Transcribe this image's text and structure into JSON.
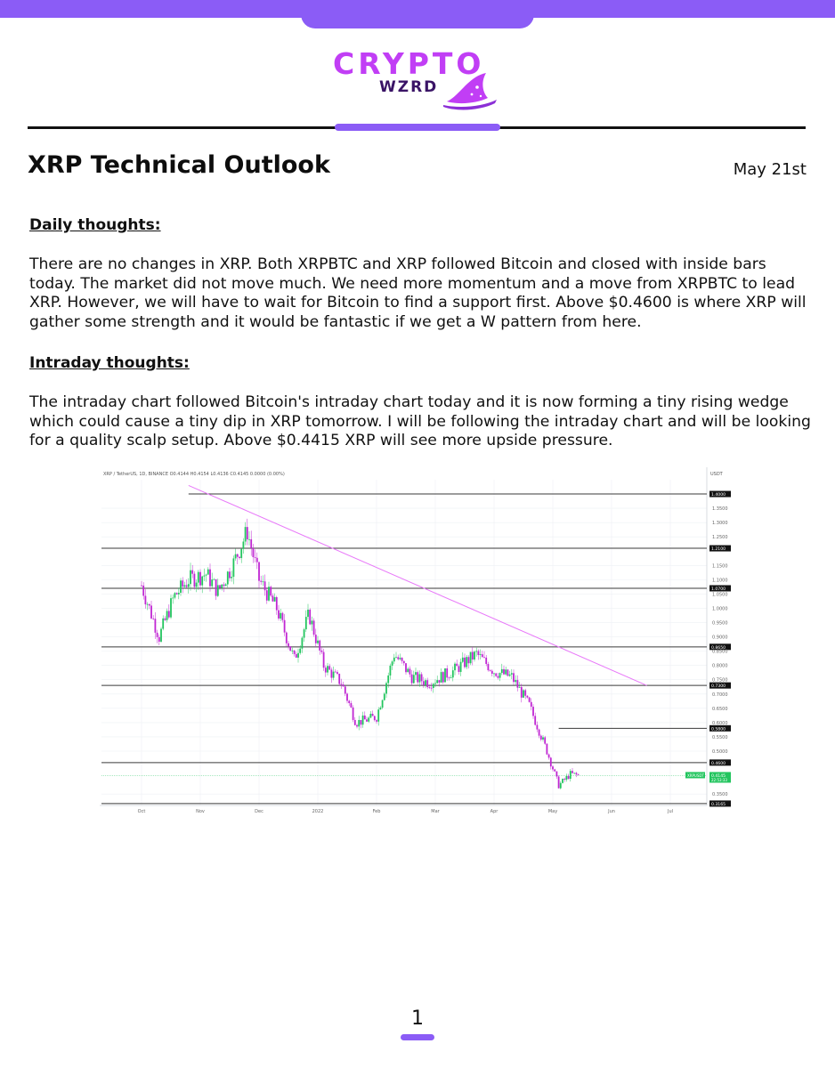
{
  "brand": {
    "logo_word": "CRYPTO",
    "logo_sub": "WZRD",
    "logo_color": "#c13ef5",
    "accent_color": "#8b5cf6"
  },
  "header": {
    "title": "XRP Technical Outlook",
    "date": "May 21st"
  },
  "sections": {
    "daily": {
      "heading": "Daily thoughts:",
      "body": "There are no changes in XRP. Both XRPBTC and XRP followed Bitcoin and closed with inside bars today. The market did not move much. We need more momentum and a move from XRPBTC to lead XRP. However, we will have to wait for Bitcoin to find a support first. Above $0.4600 is where XRP will gather some strength and it would be fantastic if we get a W pattern from here."
    },
    "intraday": {
      "heading": "Intraday thoughts:",
      "body": "The intraday chart followed Bitcoin's intraday chart today and it is now forming a tiny rising wedge which could cause a tiny dip in XRP tomorrow. I will be following the intraday chart and will be looking for a quality scalp setup. Above $0.4415 XRP will see more upside pressure."
    }
  },
  "chart_data": {
    "type": "candlestick",
    "info_line": "XRP / TetherUS, 1D, BINANCE  O0.4144  H0.4154  L0.4136  C0.4145  0.0000 (0.00%)",
    "currency": "USDT",
    "ylim": [
      0.31,
      1.45
    ],
    "y_ticks": [
      1.35,
      1.3,
      1.25,
      1.15,
      1.1,
      1.05,
      1.0,
      0.95,
      0.9,
      0.85,
      0.8,
      0.75,
      0.7,
      0.65,
      0.6,
      0.55,
      0.5,
      0.35
    ],
    "x_ticks": [
      "Oct",
      "Nov",
      "Dec",
      "2022",
      "Feb",
      "Mar",
      "Apr",
      "May",
      "Jun",
      "Jul"
    ],
    "levels": [
      {
        "value": 1.4,
        "label": "1.4000"
      },
      {
        "value": 1.21,
        "label": "1.2100"
      },
      {
        "value": 1.07,
        "label": "1.0700"
      },
      {
        "value": 0.865,
        "label": "0.8650"
      },
      {
        "value": 0.73,
        "label": "0.7300"
      },
      {
        "value": 0.58,
        "label": "0.5800"
      },
      {
        "value": 0.46,
        "label": "0.4600"
      },
      {
        "value": 0.3165,
        "label": "0.3165"
      }
    ],
    "trendline": {
      "from": {
        "month": 0.8,
        "price": 1.43
      },
      "to": {
        "month": 8.6,
        "price": 0.73
      }
    },
    "last_price": {
      "ticker": "XRPUSDT",
      "value": "0.4145",
      "countdown": "22:53:33",
      "numeric": 0.4145
    },
    "candle_path": [
      {
        "m": 0.0,
        "p": 1.08
      },
      {
        "m": 0.3,
        "p": 0.9
      },
      {
        "m": 0.55,
        "p": 1.04
      },
      {
        "m": 0.8,
        "p": 1.1
      },
      {
        "m": 1.1,
        "p": 1.12
      },
      {
        "m": 1.3,
        "p": 1.06
      },
      {
        "m": 1.55,
        "p": 1.15
      },
      {
        "m": 1.8,
        "p": 1.27
      },
      {
        "m": 2.0,
        "p": 1.1
      },
      {
        "m": 2.3,
        "p": 1.0
      },
      {
        "m": 2.6,
        "p": 0.82
      },
      {
        "m": 2.85,
        "p": 0.98
      },
      {
        "m": 3.1,
        "p": 0.8
      },
      {
        "m": 3.4,
        "p": 0.74
      },
      {
        "m": 3.65,
        "p": 0.6
      },
      {
        "m": 4.0,
        "p": 0.62
      },
      {
        "m": 4.3,
        "p": 0.84
      },
      {
        "m": 4.6,
        "p": 0.76
      },
      {
        "m": 4.9,
        "p": 0.74
      },
      {
        "m": 5.3,
        "p": 0.78
      },
      {
        "m": 5.7,
        "p": 0.84
      },
      {
        "m": 6.0,
        "p": 0.78
      },
      {
        "m": 6.3,
        "p": 0.76
      },
      {
        "m": 6.6,
        "p": 0.66
      },
      {
        "m": 6.9,
        "p": 0.5
      },
      {
        "m": 7.1,
        "p": 0.38
      },
      {
        "m": 7.3,
        "p": 0.42
      },
      {
        "m": 7.45,
        "p": 0.4145
      }
    ]
  },
  "footer": {
    "page_number": "1"
  }
}
